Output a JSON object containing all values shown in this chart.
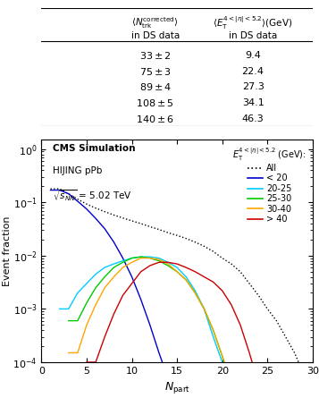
{
  "table": {
    "rows": [
      {
        "ntrk": "33 \\pm 2",
        "et": "9.4"
      },
      {
        "ntrk": "75 \\pm 3",
        "et": "22.4"
      },
      {
        "ntrk": "89 \\pm 4",
        "et": "27.3"
      },
      {
        "ntrk": "108 \\pm 5",
        "et": "34.1"
      },
      {
        "ntrk": "140 \\pm 6",
        "et": "46.3"
      }
    ]
  },
  "plot": {
    "xlim": [
      0,
      30
    ],
    "ylim": [
      0.0001,
      1.5
    ],
    "series": [
      {
        "label": "All",
        "color": "black",
        "style": "dotted",
        "edges": [
          1,
          2,
          3,
          4,
          5,
          6,
          7,
          8,
          9,
          10,
          11,
          12,
          13,
          14,
          15,
          16,
          17,
          18,
          19,
          20,
          21,
          22,
          23,
          24,
          25,
          26,
          27,
          28,
          29,
          30
        ],
        "vals": [
          0.18,
          0.145,
          0.115,
          0.093,
          0.078,
          0.067,
          0.058,
          0.051,
          0.045,
          0.04,
          0.035,
          0.031,
          0.027,
          0.024,
          0.021,
          0.018,
          0.015,
          0.012,
          0.009,
          0.007,
          0.005,
          0.003,
          0.0018,
          0.001,
          0.0006,
          0.0003,
          0.00015,
          6e-05,
          2e-05
        ]
      },
      {
        "label": "< 20",
        "color": "#0000CC",
        "style": "solid",
        "edges": [
          1,
          2,
          3,
          4,
          5,
          6,
          7,
          8,
          9,
          10,
          11,
          12,
          13
        ],
        "vals": [
          0.17,
          0.145,
          0.105,
          0.075,
          0.05,
          0.032,
          0.018,
          0.009,
          0.004,
          0.0015,
          0.0005,
          0.00015,
          5e-05
        ]
      },
      {
        "label": "20-25",
        "color": "#00CCFF",
        "style": "solid",
        "edges": [
          2,
          3,
          4,
          5,
          6,
          7,
          8,
          9,
          10,
          11,
          12,
          13,
          14,
          15,
          16,
          17,
          18,
          19,
          20,
          21
        ],
        "vals": [
          0.001,
          0.002,
          0.003,
          0.0045,
          0.006,
          0.007,
          0.008,
          0.009,
          0.0095,
          0.0095,
          0.009,
          0.0075,
          0.006,
          0.004,
          0.0022,
          0.001,
          0.0003,
          0.0001,
          3e-05,
          1e-05
        ]
      },
      {
        "label": "25-30",
        "color": "#00CC00",
        "style": "solid",
        "edges": [
          3,
          4,
          5,
          6,
          7,
          8,
          9,
          10,
          11,
          12,
          13,
          14,
          15,
          16,
          17,
          18,
          19,
          20,
          21,
          22
        ],
        "vals": [
          0.0006,
          0.0013,
          0.0025,
          0.004,
          0.006,
          0.0075,
          0.009,
          0.0095,
          0.009,
          0.008,
          0.0065,
          0.005,
          0.0035,
          0.002,
          0.001,
          0.0004,
          0.00013,
          4e-05,
          1.2e-05,
          4e-06
        ]
      },
      {
        "label": "30-40",
        "color": "#FFA500",
        "style": "solid",
        "edges": [
          3,
          4,
          5,
          6,
          7,
          8,
          9,
          10,
          11,
          12,
          13,
          14,
          15,
          16,
          17,
          18,
          19,
          20,
          21,
          22,
          23
        ],
        "vals": [
          0.00015,
          0.0005,
          0.0012,
          0.0025,
          0.004,
          0.006,
          0.0075,
          0.009,
          0.009,
          0.0085,
          0.007,
          0.005,
          0.0035,
          0.002,
          0.001,
          0.0004,
          0.00013,
          4e-05,
          1.2e-05,
          4e-06,
          1e-06
        ]
      },
      {
        "label": "> 40",
        "color": "#CC0000",
        "style": "solid",
        "edges": [
          5,
          6,
          7,
          8,
          9,
          10,
          11,
          12,
          13,
          14,
          15,
          16,
          17,
          18,
          19,
          20,
          21,
          22,
          23,
          24
        ],
        "vals": [
          0.0001,
          0.0003,
          0.0008,
          0.0018,
          0.003,
          0.005,
          0.0065,
          0.0075,
          0.0075,
          0.007,
          0.006,
          0.005,
          0.004,
          0.0032,
          0.0022,
          0.0012,
          0.0005,
          0.00015,
          4e-05,
          1e-05
        ]
      }
    ]
  }
}
